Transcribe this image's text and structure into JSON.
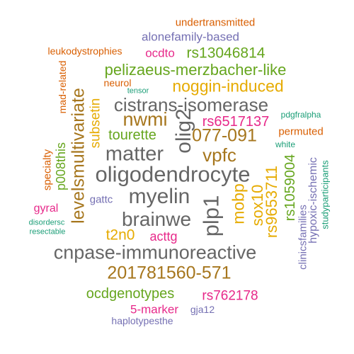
{
  "palette": {
    "green": "#66a61e",
    "teal": "#1b9e77",
    "orange": "#d95f02",
    "purple": "#7570b3",
    "magenta": "#e7298a",
    "gold": "#e6ab02",
    "brown": "#a6761d",
    "gray": "#666666"
  },
  "words": [
    {
      "id": "w1",
      "text": "undertransmitted",
      "color": "#d95f02"
    },
    {
      "id": "w2",
      "text": "alonefamily-based",
      "color": "#7570b3"
    },
    {
      "id": "w3",
      "text": "leukodystrophies",
      "color": "#d95f02"
    },
    {
      "id": "w4",
      "text": "ocdto",
      "color": "#e7298a"
    },
    {
      "id": "w5",
      "text": "rs13046814",
      "color": "#66a61e"
    },
    {
      "id": "w6",
      "text": "pelizaeus-merzbacher-like",
      "color": "#66a61e"
    },
    {
      "id": "w7",
      "text": "mad-related",
      "color": "#d95f02"
    },
    {
      "id": "w8",
      "text": "neurol",
      "color": "#d95f02"
    },
    {
      "id": "w9",
      "text": "tensor",
      "color": "#1b9e77"
    },
    {
      "id": "w10",
      "text": "noggin-induced",
      "color": "#e6ab02"
    },
    {
      "id": "w11",
      "text": "cistrans-isomerase",
      "color": "#666666"
    },
    {
      "id": "w12",
      "text": "nwmi",
      "color": "#a6761d"
    },
    {
      "id": "w13",
      "text": "rs6517137",
      "color": "#e7298a"
    },
    {
      "id": "w14",
      "text": "pdgfralpha",
      "color": "#1b9e77"
    },
    {
      "id": "w15",
      "text": "077-091",
      "color": "#a6761d"
    },
    {
      "id": "w16",
      "text": "tourette",
      "color": "#66a61e"
    },
    {
      "id": "w17",
      "text": "permuted",
      "color": "#d95f02"
    },
    {
      "id": "w18",
      "text": "white",
      "color": "#1b9e77"
    },
    {
      "id": "w19",
      "text": "matter",
      "color": "#666666"
    },
    {
      "id": "w20",
      "text": "vpfc",
      "color": "#a6761d"
    },
    {
      "id": "w21",
      "text": "oligodendrocyte",
      "color": "#666666"
    },
    {
      "id": "w22",
      "text": "myelin",
      "color": "#666666"
    },
    {
      "id": "w23",
      "text": "gattc",
      "color": "#7570b3"
    },
    {
      "id": "w24",
      "text": "gyral",
      "color": "#e7298a"
    },
    {
      "id": "w25",
      "text": "brainwe",
      "color": "#666666"
    },
    {
      "id": "w26",
      "text": "disordersc",
      "color": "#1b9e77"
    },
    {
      "id": "w27",
      "text": "resectable",
      "color": "#1b9e77"
    },
    {
      "id": "w28",
      "text": "t2n0",
      "color": "#e6ab02"
    },
    {
      "id": "w29",
      "text": "acttg",
      "color": "#e7298a"
    },
    {
      "id": "w30",
      "text": "cnpase-immunoreactive",
      "color": "#666666"
    },
    {
      "id": "w31",
      "text": "201781560-571",
      "color": "#a6761d"
    },
    {
      "id": "w32",
      "text": "ocdgenotypes",
      "color": "#66a61e"
    },
    {
      "id": "w33",
      "text": "rs762178",
      "color": "#e7298a"
    },
    {
      "id": "w34",
      "text": "5-marker",
      "color": "#e7298a"
    },
    {
      "id": "w35",
      "text": "gja12",
      "color": "#7570b3"
    },
    {
      "id": "w36",
      "text": "haplotypesthe",
      "color": "#7570b3"
    },
    {
      "id": "w37",
      "text": "specialty",
      "color": "#d95f02"
    },
    {
      "id": "w38",
      "text": "p008this",
      "color": "#66a61e"
    },
    {
      "id": "w39",
      "text": "levelsmultivariate",
      "color": "#a6761d"
    },
    {
      "id": "w40",
      "text": "subsetin",
      "color": "#e6ab02"
    },
    {
      "id": "w41",
      "text": "olig2",
      "color": "#666666"
    },
    {
      "id": "w42",
      "text": "plp1",
      "color": "#666666"
    },
    {
      "id": "w43",
      "text": "mobp",
      "color": "#e6ab02"
    },
    {
      "id": "w44",
      "text": "sox10",
      "color": "#e6ab02"
    },
    {
      "id": "w45",
      "text": "rs9653711",
      "color": "#e6ab02"
    },
    {
      "id": "w46",
      "text": "rs1059004",
      "color": "#66a61e"
    },
    {
      "id": "w47",
      "text": "clinicsfamilies",
      "color": "#7570b3"
    },
    {
      "id": "w48",
      "text": "hypoxic-ischemic",
      "color": "#7570b3"
    },
    {
      "id": "w49",
      "text": "studyparticipants",
      "color": "#1b9e77"
    }
  ]
}
